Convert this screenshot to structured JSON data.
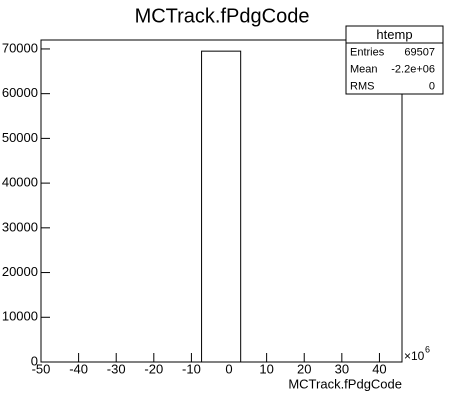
{
  "chart_data": {
    "type": "histogram",
    "title": "MCTrack.fPdgCode",
    "x_label": "MCTrack.fPdgCode",
    "x_multiplier": {
      "base": "×10",
      "exponent": "6"
    },
    "bins": [
      -7.3,
      3.1
    ],
    "values": [
      69507
    ],
    "color": "#ffffff",
    "edge_color": "#000000",
    "xlim": [
      -50,
      46
    ],
    "xticks": [
      -50,
      -40,
      -30,
      -20,
      -10,
      0,
      10,
      20,
      30,
      40
    ],
    "ylim": [
      0,
      72000
    ],
    "yticks": [
      0,
      10000,
      20000,
      30000,
      40000,
      50000,
      60000,
      70000
    ],
    "stats": {
      "title": "htemp",
      "rows": [
        [
          "Entries",
          "69507"
        ],
        [
          "Mean",
          "-2.2e+06"
        ],
        [
          "RMS",
          "0"
        ]
      ]
    }
  }
}
